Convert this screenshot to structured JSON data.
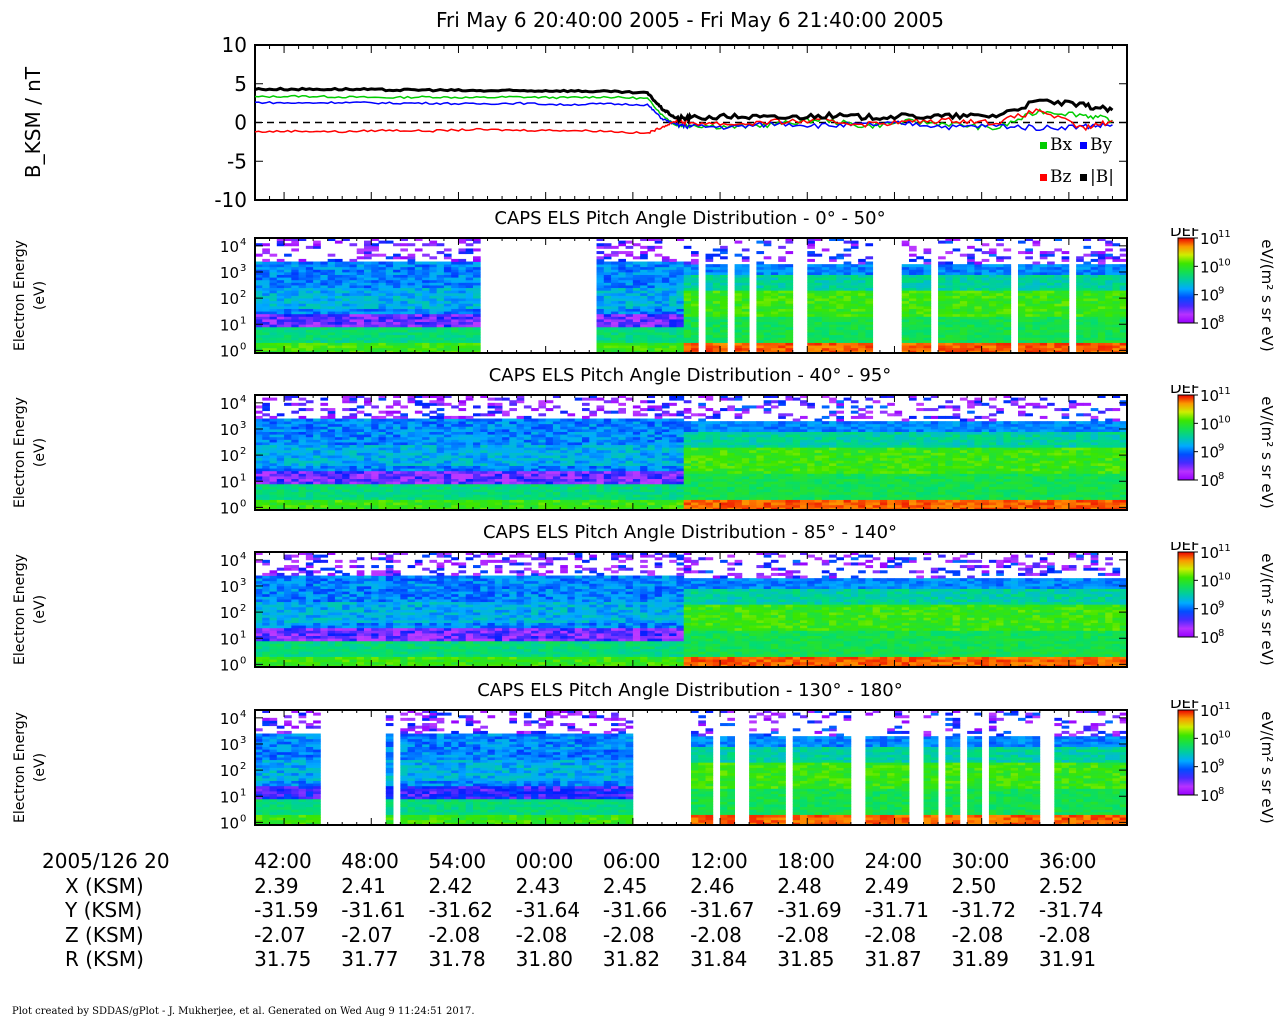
{
  "chart_data": [
    {
      "type": "line",
      "title": "Fri May 6 20:40:00 2005 - Fri May 6 21:40:00 2005",
      "ylabel": "B_KSM / nT",
      "ylim": [
        -10,
        10
      ],
      "yticks": [
        -10,
        -5,
        0,
        5,
        10
      ],
      "legend": "bottom-right",
      "x_minutes_after_20_40": [
        0,
        3,
        6,
        9,
        12,
        15,
        18,
        21,
        24,
        27,
        28,
        29,
        30,
        33,
        36,
        39,
        42,
        45,
        48,
        51,
        54,
        57,
        59
      ],
      "series": [
        {
          "name": "Bx",
          "color": "#00cc00",
          "values": [
            3.3,
            3.4,
            3.3,
            3.2,
            3.3,
            3.2,
            3.3,
            3.2,
            3.3,
            3.1,
            1.0,
            -0.4,
            -0.3,
            -0.6,
            -0.2,
            0.4,
            -0.5,
            0.1,
            -0.2,
            -0.8,
            1.5,
            1.0,
            0.3
          ]
        },
        {
          "name": "By",
          "color": "#0000ff",
          "values": [
            2.6,
            2.5,
            2.6,
            2.5,
            2.5,
            2.4,
            2.5,
            2.3,
            2.4,
            2.3,
            0.5,
            -0.3,
            -0.5,
            -0.6,
            -0.1,
            -0.4,
            -0.3,
            -0.1,
            -0.6,
            -0.4,
            -0.7,
            -0.5,
            -0.3
          ]
        },
        {
          "name": "Bz",
          "color": "#ff0000",
          "values": [
            -1.2,
            -1.1,
            -1.2,
            -1.0,
            -1.1,
            -0.9,
            -1.0,
            -1.0,
            -1.1,
            -1.4,
            -0.6,
            0.2,
            0.0,
            -0.2,
            0.1,
            0.2,
            -0.2,
            0.1,
            0.3,
            0.0,
            1.6,
            -0.8,
            0.2
          ]
        },
        {
          "name": "|B|",
          "color": "#000000",
          "values": [
            4.3,
            4.3,
            4.3,
            4.2,
            4.2,
            4.1,
            4.1,
            4.1,
            4.0,
            3.8,
            1.8,
            0.5,
            0.6,
            0.8,
            0.6,
            0.9,
            0.7,
            0.8,
            0.8,
            0.9,
            2.8,
            2.2,
            1.6
          ]
        }
      ]
    },
    {
      "type": "heatmap",
      "title": "CAPS ELS Pitch Angle Distribution - 0° - 50°",
      "ylabel": "Electron Energy (eV)",
      "colorbar": {
        "label": "DEF",
        "units": "eV/(m² s sr eV)",
        "range_log10": [
          8,
          11
        ]
      },
      "data_gaps_minutes": [
        [
          15.5,
          23.5
        ],
        [
          30.5,
          31
        ],
        [
          32.3,
          32.8
        ],
        [
          34,
          34.5
        ],
        [
          37.2,
          38
        ],
        [
          42.5,
          44.5
        ],
        [
          44.8,
          45.2
        ],
        [
          46.5,
          47
        ],
        [
          52,
          52.5
        ],
        [
          56,
          56.4
        ]
      ],
      "low_energy_band_log10": [
        0,
        0.9
      ]
    },
    {
      "type": "heatmap",
      "title": "CAPS ELS Pitch Angle Distribution - 40° - 95°",
      "ylabel": "Electron Energy (eV)",
      "colorbar": {
        "label": "DEF",
        "units": "eV/(m² s sr eV)",
        "range_log10": [
          8,
          11
        ]
      }
    },
    {
      "type": "heatmap",
      "title": "CAPS ELS Pitch Angle Distribution - 85° - 140°",
      "ylabel": "Electron Energy (eV)",
      "colorbar": {
        "label": "DEF",
        "units": "eV/(m² s sr eV)",
        "range_log10": [
          8,
          11
        ]
      }
    },
    {
      "type": "heatmap",
      "title": "CAPS ELS Pitch Angle Distribution - 130° - 180°",
      "ylabel": "Electron Energy (eV)",
      "colorbar": {
        "label": "DEF",
        "units": "eV/(m² s sr eV)",
        "range_log10": [
          8,
          11
        ]
      },
      "data_gaps_minutes": [
        [
          4.3,
          9.0
        ],
        [
          9.6,
          10.2
        ],
        [
          26.0,
          30.0
        ],
        [
          31.5,
          32.0
        ],
        [
          33.0,
          34.0
        ],
        [
          36.5,
          37.0
        ],
        [
          41.0,
          42.0
        ],
        [
          45.0,
          46.0
        ],
        [
          47.0,
          47.5
        ],
        [
          48.5,
          49.0
        ],
        [
          50.0,
          50.5
        ],
        [
          54.0,
          55.0
        ]
      ]
    }
  ],
  "axis": {
    "time_label": "2005/126 20",
    "tick_minutes": [
      2,
      8,
      14,
      20,
      26,
      32,
      38,
      44,
      50,
      56
    ],
    "time_ticks": [
      "42:00",
      "48:00",
      "54:00",
      "00:00",
      "06:00",
      "12:00",
      "18:00",
      "24:00",
      "30:00",
      "36:00"
    ],
    "ephemeris": [
      {
        "label": "X (KSM)",
        "values": [
          "2.39",
          "2.41",
          "2.42",
          "2.43",
          "2.45",
          "2.46",
          "2.48",
          "2.49",
          "2.50",
          "2.52"
        ]
      },
      {
        "label": "Y (KSM)",
        "values": [
          "-31.59",
          "-31.61",
          "-31.62",
          "-31.64",
          "-31.66",
          "-31.67",
          "-31.69",
          "-31.71",
          "-31.72",
          "-31.74"
        ]
      },
      {
        "label": "Z (KSM)",
        "values": [
          "-2.07",
          "-2.07",
          "-2.08",
          "-2.08",
          "-2.08",
          "-2.08",
          "-2.08",
          "-2.08",
          "-2.08",
          "-2.08"
        ]
      },
      {
        "label": "R (KSM)",
        "values": [
          "31.75",
          "31.77",
          "31.78",
          "31.80",
          "31.82",
          "31.84",
          "31.85",
          "31.87",
          "31.89",
          "31.91"
        ]
      }
    ]
  },
  "footer": "Plot created by SDDAS/gPlot - J. Mukherjee, et al.  Generated on Wed Aug 9 11:24:51 2017."
}
